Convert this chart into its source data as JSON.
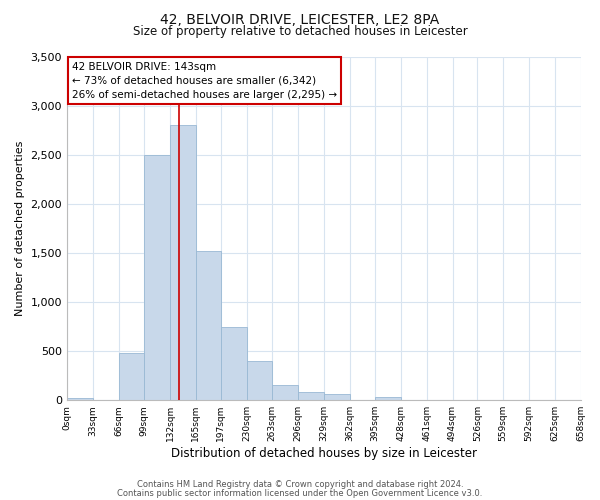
{
  "title_line1": "42, BELVOIR DRIVE, LEICESTER, LE2 8PA",
  "title_line2": "Size of property relative to detached houses in Leicester",
  "xlabel": "Distribution of detached houses by size in Leicester",
  "ylabel": "Number of detached properties",
  "bin_edges": [
    0,
    33,
    66,
    99,
    132,
    165,
    197,
    230,
    263,
    296,
    329,
    362,
    395,
    428,
    461,
    494,
    526,
    559,
    592,
    625,
    658
  ],
  "bar_heights": [
    20,
    0,
    480,
    2500,
    2800,
    1520,
    750,
    400,
    150,
    80,
    60,
    0,
    30,
    0,
    0,
    0,
    0,
    0,
    0,
    0
  ],
  "bar_color": "#c8d8ea",
  "bar_edgecolor": "#99b8d4",
  "vline_x": 143,
  "vline_color": "#cc0000",
  "ylim": [
    0,
    3500
  ],
  "yticks": [
    0,
    500,
    1000,
    1500,
    2000,
    2500,
    3000,
    3500
  ],
  "xtick_labels": [
    "0sqm",
    "33sqm",
    "66sqm",
    "99sqm",
    "132sqm",
    "165sqm",
    "197sqm",
    "230sqm",
    "263sqm",
    "296sqm",
    "329sqm",
    "362sqm",
    "395sqm",
    "428sqm",
    "461sqm",
    "494sqm",
    "526sqm",
    "559sqm",
    "592sqm",
    "625sqm",
    "658sqm"
  ],
  "annotation_title": "42 BELVOIR DRIVE: 143sqm",
  "annotation_line1": "← 73% of detached houses are smaller (6,342)",
  "annotation_line2": "26% of semi-detached houses are larger (2,295) →",
  "annotation_box_color": "#ffffff",
  "annotation_box_edgecolor": "#cc0000",
  "footer_line1": "Contains HM Land Registry data © Crown copyright and database right 2024.",
  "footer_line2": "Contains public sector information licensed under the Open Government Licence v3.0.",
  "grid_color": "#d8e4f0",
  "background_color": "#ffffff"
}
